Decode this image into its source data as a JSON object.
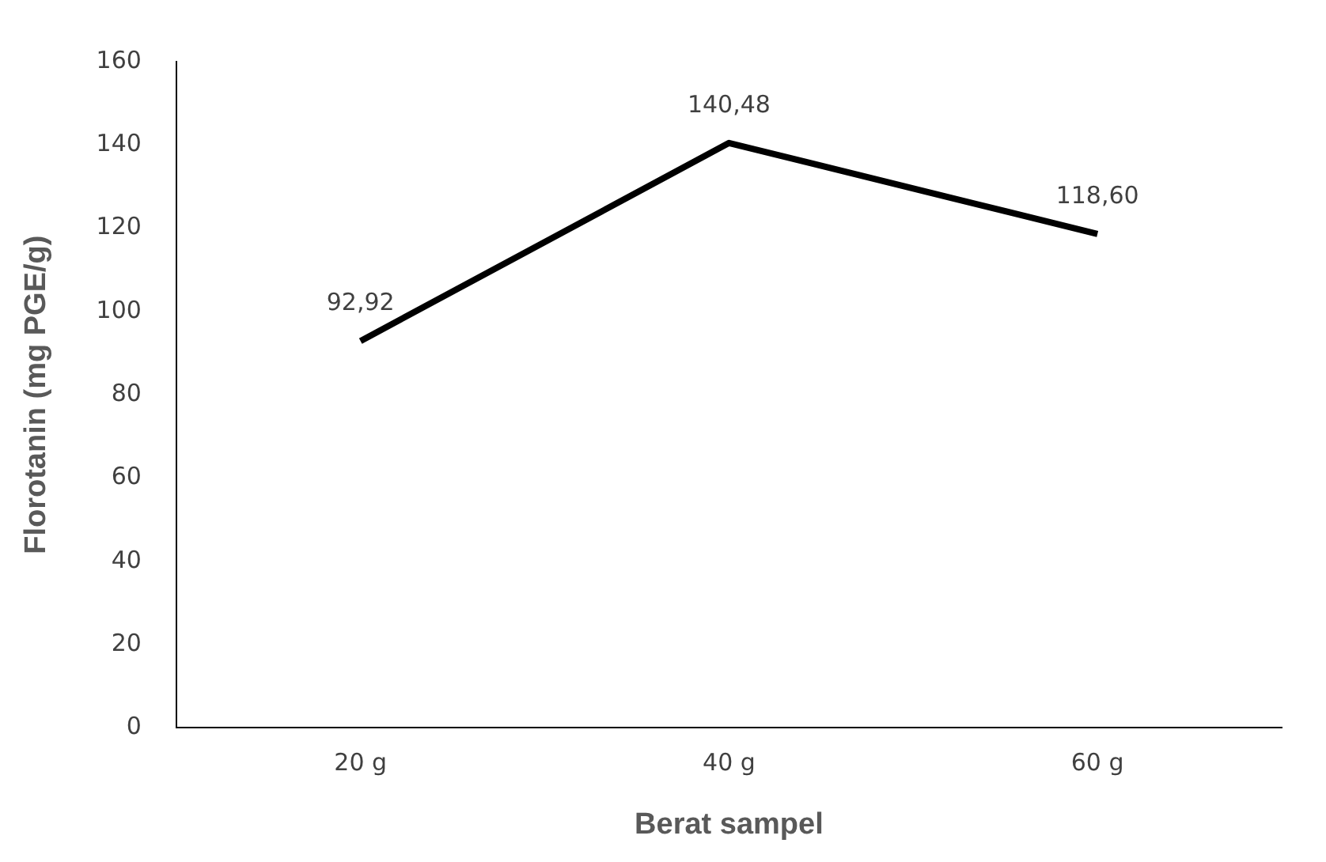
{
  "chart_data": {
    "type": "line",
    "xlabel": "Berat sampel",
    "ylabel": "Florotanin (mg PGE/g)",
    "categories": [
      "20 g",
      "40 g",
      "60 g"
    ],
    "series": [
      {
        "color": "#000000",
        "values": [
          92.92,
          140.48,
          118.6
        ],
        "value_labels": [
          "92,92",
          "140,48",
          "118,60"
        ]
      }
    ],
    "ylim": [
      0,
      160
    ],
    "yticks": [
      0,
      20,
      40,
      60,
      80,
      100,
      120,
      140,
      160
    ],
    "grid": false,
    "legend": false,
    "marker": "none",
    "line_style": "solid"
  }
}
